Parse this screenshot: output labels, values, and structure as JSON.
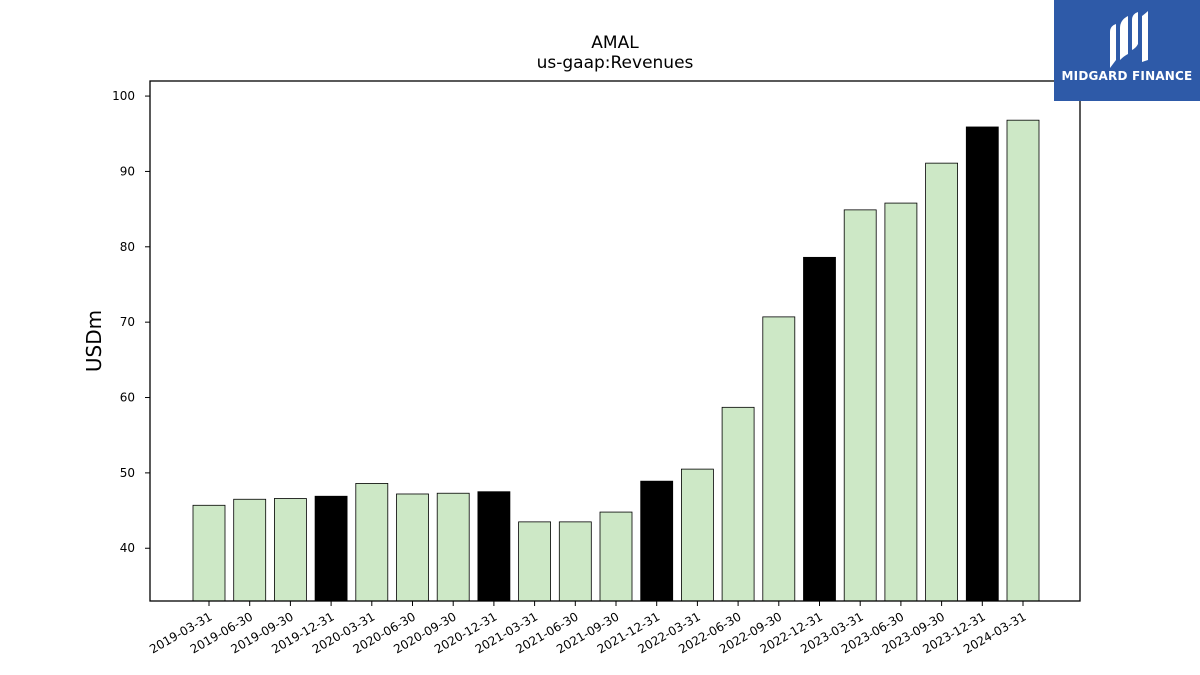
{
  "chart_data": {
    "type": "bar",
    "title": "AMAL",
    "subtitle": "us-gaap:Revenues",
    "ylabel": "USDm",
    "xlabel": "",
    "ylim": [
      33,
      102
    ],
    "yticks": [
      40,
      50,
      60,
      70,
      80,
      90,
      100
    ],
    "grid": false,
    "categories": [
      "2019-03-31",
      "2019-06-30",
      "2019-09-30",
      "2019-12-31",
      "2020-03-31",
      "2020-06-30",
      "2020-09-30",
      "2020-12-31",
      "2021-03-31",
      "2021-06-30",
      "2021-09-30",
      "2021-12-31",
      "2022-03-31",
      "2022-06-30",
      "2022-09-30",
      "2022-12-31",
      "2023-03-31",
      "2023-06-30",
      "2023-09-30",
      "2023-12-31",
      "2024-03-31"
    ],
    "values": [
      45.7,
      46.5,
      46.6,
      46.9,
      48.6,
      47.2,
      47.3,
      47.5,
      43.5,
      43.5,
      44.8,
      48.9,
      50.5,
      58.7,
      70.7,
      78.6,
      84.9,
      85.8,
      91.1,
      95.9,
      96.8
    ],
    "colors": {
      "quarter": "#cde8c6",
      "year_end": "#000000",
      "edge": "#000000"
    },
    "year_end_flags": [
      false,
      false,
      false,
      true,
      false,
      false,
      false,
      true,
      false,
      false,
      false,
      true,
      false,
      false,
      false,
      true,
      false,
      false,
      false,
      true,
      false
    ]
  },
  "logo": {
    "text": "MIDGARD FINANCE",
    "icon": "midgard-logo-icon",
    "background": "#2e5aa8"
  }
}
